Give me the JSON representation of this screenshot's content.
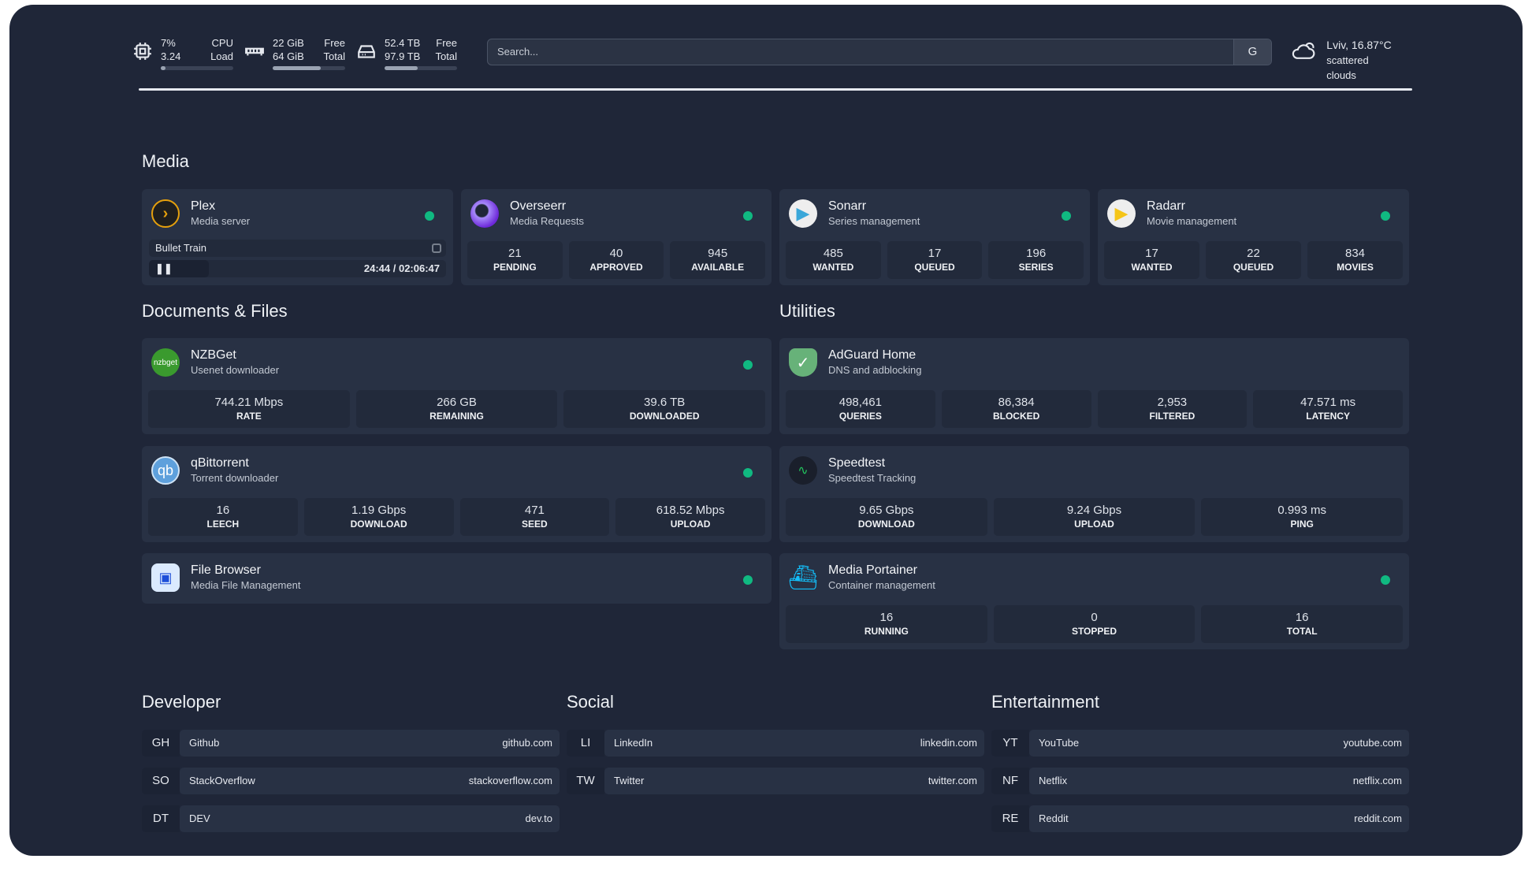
{
  "topbar": {
    "cpu": {
      "value1": "7%",
      "value2": "3.24",
      "label1": "CPU",
      "label2": "Load",
      "percent": 7
    },
    "memory": {
      "value1": "22 GiB",
      "value2": "64 GiB",
      "label1": "Free",
      "label2": "Total",
      "percent": 66
    },
    "disk": {
      "value1": "52.4 TB",
      "value2": "97.9 TB",
      "label1": "Free",
      "label2": "Total",
      "percent": 46
    },
    "search": {
      "placeholder": "Search...",
      "engine_button": "G"
    },
    "weather": {
      "location_temp": "Lviv, 16.87°C",
      "condition": "scattered clouds"
    }
  },
  "sections": {
    "media": "Media",
    "documents": "Documents & Files",
    "utilities": "Utilities",
    "developer": "Developer",
    "social": "Social",
    "entertainment": "Entertainment"
  },
  "status_color": "#10b981",
  "plex": {
    "title": "Plex",
    "subtitle": "Media server",
    "now_playing": "Bullet Train",
    "time": "24:44 / 02:06:47"
  },
  "overseerr": {
    "title": "Overseerr",
    "subtitle": "Media Requests",
    "stats": [
      {
        "v": "21",
        "l": "PENDING"
      },
      {
        "v": "40",
        "l": "APPROVED"
      },
      {
        "v": "945",
        "l": "AVAILABLE"
      }
    ]
  },
  "sonarr": {
    "title": "Sonarr",
    "subtitle": "Series management",
    "stats": [
      {
        "v": "485",
        "l": "WANTED"
      },
      {
        "v": "17",
        "l": "QUEUED"
      },
      {
        "v": "196",
        "l": "SERIES"
      }
    ]
  },
  "radarr": {
    "title": "Radarr",
    "subtitle": "Movie management",
    "stats": [
      {
        "v": "17",
        "l": "WANTED"
      },
      {
        "v": "22",
        "l": "QUEUED"
      },
      {
        "v": "834",
        "l": "MOVIES"
      }
    ]
  },
  "nzbget": {
    "title": "NZBGet",
    "subtitle": "Usenet downloader",
    "logo_text": "nzbget",
    "stats": [
      {
        "v": "744.21 Mbps",
        "l": "RATE"
      },
      {
        "v": "266 GB",
        "l": "REMAINING"
      },
      {
        "v": "39.6 TB",
        "l": "DOWNLOADED"
      }
    ]
  },
  "qbittorrent": {
    "title": "qBittorrent",
    "subtitle": "Torrent downloader",
    "logo_text": "qb",
    "stats": [
      {
        "v": "16",
        "l": "LEECH"
      },
      {
        "v": "1.19 Gbps",
        "l": "DOWNLOAD"
      },
      {
        "v": "471",
        "l": "SEED"
      },
      {
        "v": "618.52 Mbps",
        "l": "UPLOAD"
      }
    ]
  },
  "filebrowser": {
    "title": "File Browser",
    "subtitle": "Media File Management"
  },
  "adguard": {
    "title": "AdGuard Home",
    "subtitle": "DNS and adblocking",
    "stats": [
      {
        "v": "498,461",
        "l": "QUERIES"
      },
      {
        "v": "86,384",
        "l": "BLOCKED"
      },
      {
        "v": "2,953",
        "l": "FILTERED"
      },
      {
        "v": "47.571 ms",
        "l": "LATENCY"
      }
    ]
  },
  "speedtest": {
    "title": "Speedtest",
    "subtitle": "Speedtest Tracking",
    "stats": [
      {
        "v": "9.65 Gbps",
        "l": "DOWNLOAD"
      },
      {
        "v": "9.24 Gbps",
        "l": "UPLOAD"
      },
      {
        "v": "0.993 ms",
        "l": "PING"
      }
    ]
  },
  "portainer": {
    "title": "Media Portainer",
    "subtitle": "Container management",
    "stats": [
      {
        "v": "16",
        "l": "RUNNING"
      },
      {
        "v": "0",
        "l": "STOPPED"
      },
      {
        "v": "16",
        "l": "TOTAL"
      }
    ]
  },
  "bookmarks": {
    "developer": [
      {
        "abbr": "GH",
        "name": "Github",
        "url": "github.com"
      },
      {
        "abbr": "SO",
        "name": "StackOverflow",
        "url": "stackoverflow.com"
      },
      {
        "abbr": "DT",
        "name": "DEV",
        "url": "dev.to"
      }
    ],
    "social": [
      {
        "abbr": "LI",
        "name": "LinkedIn",
        "url": "linkedin.com"
      },
      {
        "abbr": "TW",
        "name": "Twitter",
        "url": "twitter.com"
      }
    ],
    "entertainment": [
      {
        "abbr": "YT",
        "name": "YouTube",
        "url": "youtube.com"
      },
      {
        "abbr": "NF",
        "name": "Netflix",
        "url": "netflix.com"
      },
      {
        "abbr": "RE",
        "name": "Reddit",
        "url": "reddit.com"
      }
    ]
  }
}
